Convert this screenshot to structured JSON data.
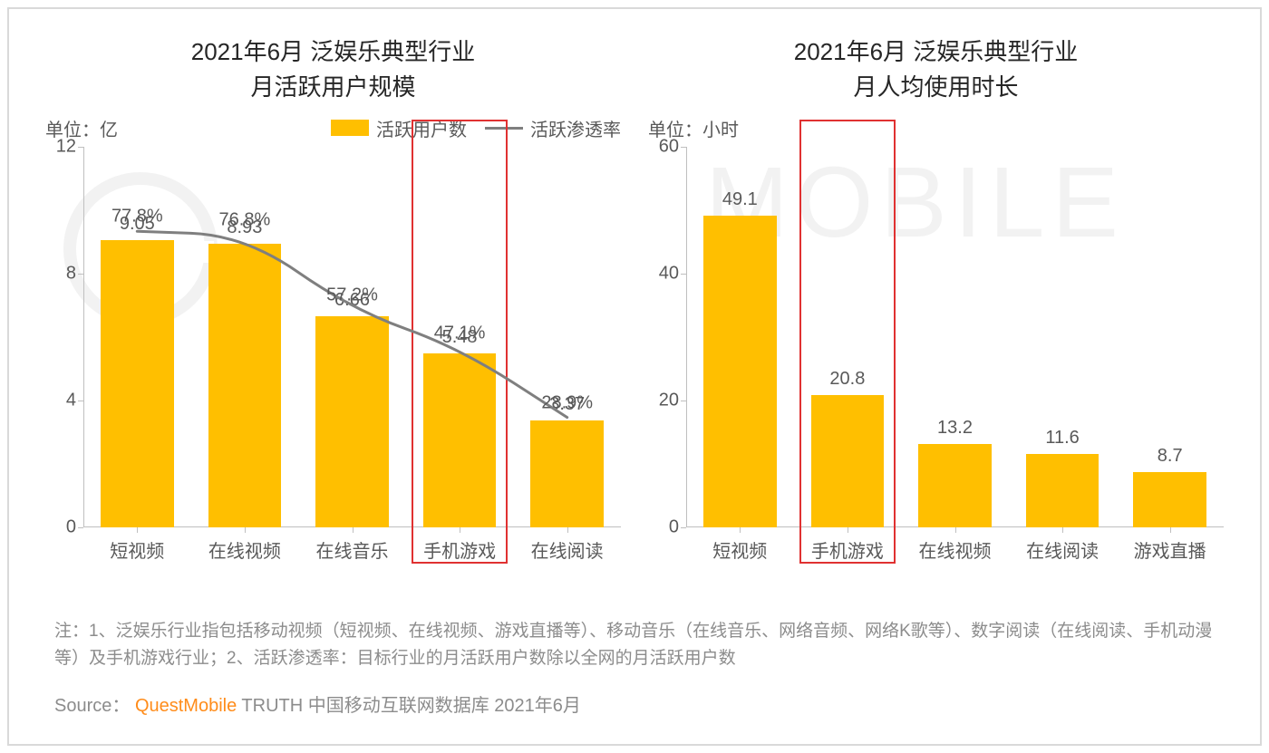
{
  "background_color": "#ffffff",
  "border_color": "#d9d9d9",
  "watermark_text": "MOBILE",
  "watermark_color": "#f2f2f2",
  "bar_color": "#ffbf00",
  "line_color": "#7f7f7f",
  "highlight_color": "#e03131",
  "text_color": "#595959",
  "title_color": "#262626",
  "axis_color": "#bfbfbf",
  "title_fontsize": 26,
  "label_fontsize": 20,
  "chart_left": {
    "type": "bar+line",
    "title": "2021年6月 泛娱乐典型行业\n月活跃用户规模",
    "unit_label": "单位：亿",
    "legend_bar": "活跃用户数",
    "legend_line": "活跃渗透率",
    "categories": [
      "短视频",
      "在线视频",
      "在线音乐",
      "手机游戏",
      "在线阅读"
    ],
    "bar_values": [
      9.05,
      8.93,
      6.66,
      5.48,
      3.37
    ],
    "bar_value_labels": [
      "9.05",
      "8.93",
      "6.66",
      "5.48",
      "3.37"
    ],
    "ylim": [
      0,
      12
    ],
    "yticks": [
      0,
      4,
      8,
      12
    ],
    "ytick_labels": [
      "0",
      "4",
      "8",
      "12"
    ],
    "line_values": [
      77.8,
      76.8,
      57.2,
      47.1,
      28.9
    ],
    "line_labels": [
      "77.8%",
      "76.8%",
      "57.2%",
      "47.1%",
      "28.9%"
    ],
    "line_ylim": [
      0,
      100
    ],
    "line_width": 3,
    "highlight_index": 3,
    "bar_width_pct": 68
  },
  "chart_right": {
    "type": "bar",
    "title": "2021年6月 泛娱乐典型行业\n月人均使用时长",
    "unit_label": "单位：小时",
    "categories": [
      "短视频",
      "手机游戏",
      "在线视频",
      "在线阅读",
      "游戏直播"
    ],
    "bar_values": [
      49.1,
      20.8,
      13.2,
      11.6,
      8.7
    ],
    "bar_value_labels": [
      "49.1",
      "20.8",
      "13.2",
      "11.6",
      "8.7"
    ],
    "ylim": [
      0,
      60
    ],
    "yticks": [
      0,
      20,
      40,
      60
    ],
    "ytick_labels": [
      "0",
      "20",
      "40",
      "60"
    ],
    "highlight_index": 1,
    "bar_width_pct": 68
  },
  "footnote": "注：1、泛娱乐行业指包括移动视频（短视频、在线视频、游戏直播等）、移动音乐（在线音乐、网络音频、网络K歌等）、数字阅读（在线阅读、手机动漫等）及手机游戏行业；2、活跃渗透率：目标行业的月活跃用户数除以全网的月活跃用户数",
  "source_prefix": "Source：",
  "source_brand": "QuestMobile",
  "source_suffix": "TRUTH 中国移动互联网数据库 2021年6月"
}
